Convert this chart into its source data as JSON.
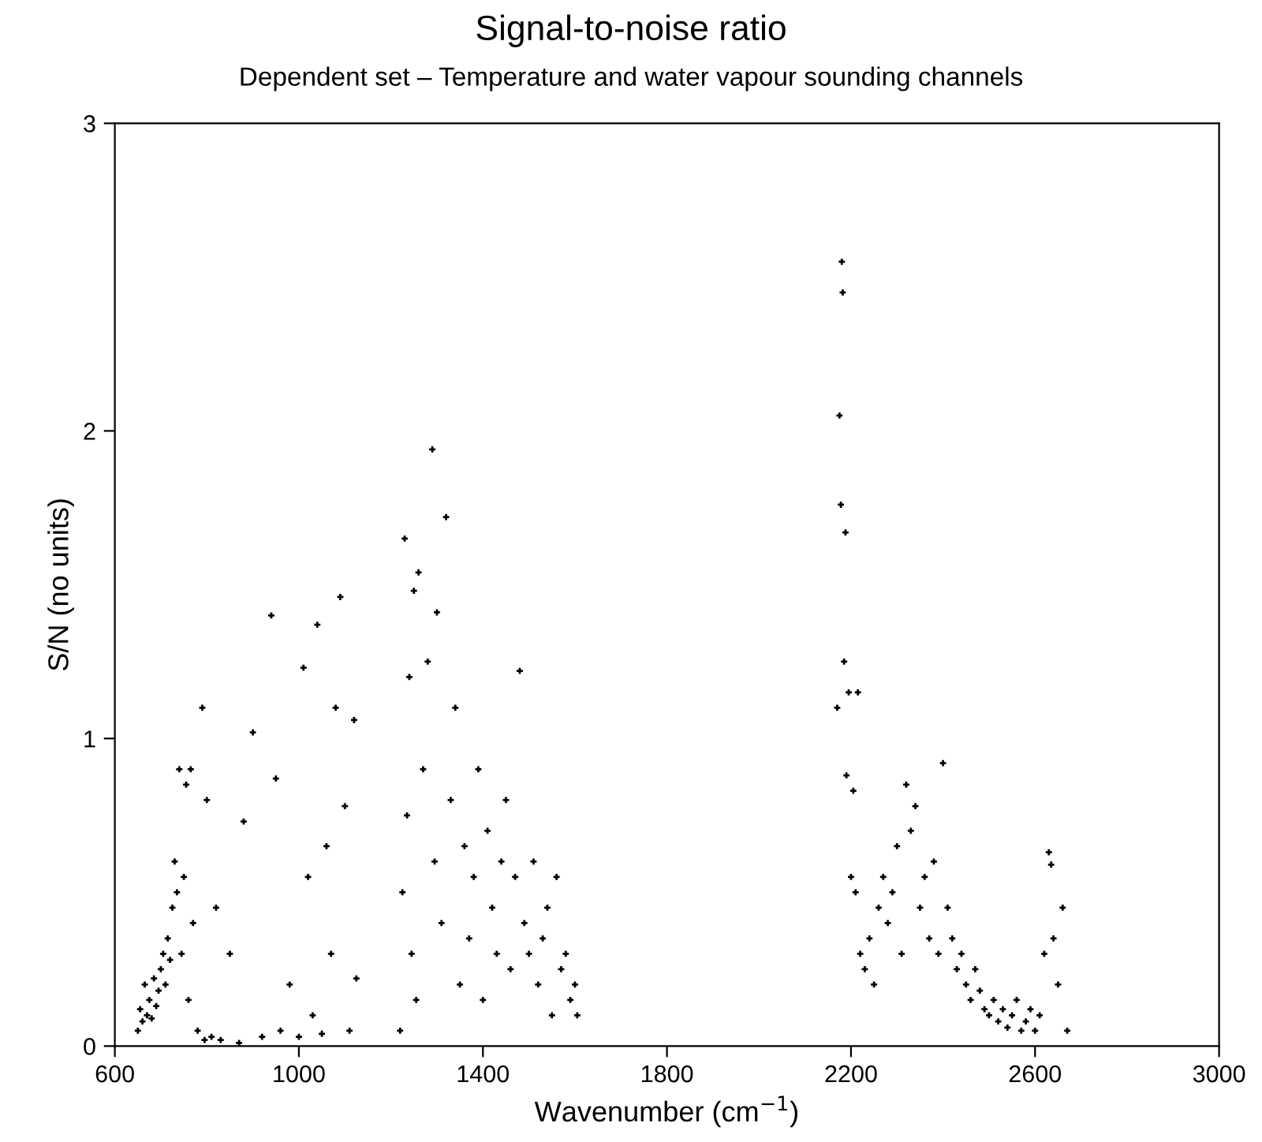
{
  "chart_data": {
    "type": "scatter",
    "title": "Signal-to-noise ratio",
    "subtitle": "Dependent set – Temperature and water vapour sounding channels",
    "xlabel": "Wavenumber (cm$^{−1}$)",
    "ylabel": "S/N (no units)",
    "x": [
      650,
      655,
      660,
      665,
      670,
      675,
      680,
      685,
      690,
      695,
      700,
      705,
      710,
      715,
      720,
      725,
      730,
      735,
      740,
      745,
      750,
      755,
      760,
      765,
      770,
      780,
      790,
      795,
      800,
      810,
      820,
      830,
      850,
      870,
      880,
      900,
      920,
      940,
      950,
      960,
      980,
      1000,
      1010,
      1020,
      1030,
      1040,
      1050,
      1060,
      1070,
      1080,
      1090,
      1100,
      1110,
      1120,
      1125,
      1220,
      1225,
      1230,
      1235,
      1240,
      1245,
      1250,
      1255,
      1260,
      1270,
      1280,
      1290,
      1295,
      1300,
      1310,
      1320,
      1330,
      1340,
      1350,
      1360,
      1370,
      1380,
      1390,
      1400,
      1410,
      1420,
      1430,
      1440,
      1450,
      1460,
      1470,
      1480,
      1490,
      1500,
      1510,
      1520,
      1530,
      1540,
      1550,
      1560,
      1570,
      1580,
      1590,
      1600,
      1605,
      2170,
      2175,
      2178,
      2180,
      2182,
      2185,
      2188,
      2190,
      2195,
      2200,
      2205,
      2210,
      2215,
      2220,
      2230,
      2240,
      2250,
      2260,
      2270,
      2280,
      2290,
      2300,
      2310,
      2320,
      2330,
      2340,
      2350,
      2360,
      2370,
      2380,
      2390,
      2400,
      2410,
      2420,
      2430,
      2440,
      2450,
      2460,
      2470,
      2480,
      2490,
      2500,
      2510,
      2520,
      2530,
      2540,
      2550,
      2560,
      2570,
      2580,
      2590,
      2600,
      2610,
      2620,
      2630,
      2635,
      2640,
      2650,
      2660,
      2670
    ],
    "values": [
      0.05,
      0.12,
      0.08,
      0.2,
      0.1,
      0.15,
      0.09,
      0.22,
      0.13,
      0.18,
      0.25,
      0.3,
      0.2,
      0.35,
      0.28,
      0.45,
      0.6,
      0.5,
      0.9,
      0.3,
      0.55,
      0.85,
      0.15,
      0.9,
      0.4,
      0.05,
      1.1,
      0.02,
      0.8,
      0.03,
      0.45,
      0.02,
      0.3,
      0.01,
      0.73,
      1.02,
      0.03,
      1.4,
      0.87,
      0.05,
      0.2,
      0.03,
      1.23,
      0.55,
      0.1,
      1.37,
      0.04,
      0.65,
      0.3,
      1.1,
      1.46,
      0.78,
      0.05,
      1.06,
      0.22,
      0.05,
      0.5,
      1.65,
      0.75,
      1.2,
      0.3,
      1.48,
      0.15,
      1.54,
      0.9,
      1.25,
      1.94,
      0.6,
      1.41,
      0.4,
      1.72,
      0.8,
      1.1,
      0.2,
      0.65,
      0.35,
      0.55,
      0.9,
      0.15,
      0.7,
      0.45,
      0.3,
      0.6,
      0.8,
      0.25,
      0.55,
      1.22,
      0.4,
      0.3,
      0.6,
      0.2,
      0.35,
      0.45,
      0.1,
      0.55,
      0.25,
      0.3,
      0.15,
      0.2,
      0.1,
      1.1,
      2.05,
      1.76,
      2.55,
      2.45,
      1.25,
      1.67,
      0.88,
      1.15,
      0.55,
      0.83,
      0.5,
      1.15,
      0.3,
      0.25,
      0.35,
      0.2,
      0.45,
      0.55,
      0.4,
      0.5,
      0.65,
      0.3,
      0.85,
      0.7,
      0.78,
      0.45,
      0.55,
      0.35,
      0.6,
      0.3,
      0.92,
      0.45,
      0.35,
      0.25,
      0.3,
      0.2,
      0.15,
      0.25,
      0.18,
      0.12,
      0.1,
      0.15,
      0.08,
      0.12,
      0.06,
      0.1,
      0.15,
      0.05,
      0.08,
      0.12,
      0.05,
      0.1,
      0.3,
      0.63,
      0.59,
      0.35,
      0.2,
      0.45,
      0.05
    ],
    "color": "#000000",
    "marker": "cross",
    "xlim": [
      600,
      3000
    ],
    "xticks": [
      600,
      1000,
      1400,
      1800,
      2200,
      2600,
      3000
    ],
    "ylim": [
      0,
      3
    ],
    "yticks": [
      0,
      1,
      2,
      3
    ],
    "grid": false
  }
}
